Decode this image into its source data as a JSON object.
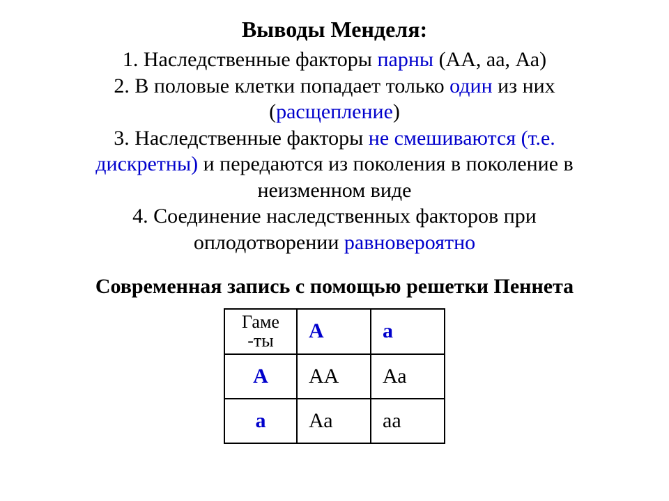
{
  "title": "Выводы Менделя:",
  "lines": {
    "l1a": "1. Наследственные факторы ",
    "l1b": "парны",
    "l1c": " (АА, аа, Аа)",
    "l2a": "2. В половые клетки попадает только ",
    "l2b": "один",
    "l2c": " из них",
    "l2d": "(",
    "l2e": "расщепление",
    "l2f": ")",
    "l3a": "3. Наследственные факторы ",
    "l3b": "не смешиваются (т.е.",
    "l3c": "дискретны)",
    "l3d": " и передаются из поколения в поколение в",
    "l3e": "неизменном виде",
    "l4a": "4. Соединение наследственных факторов при",
    "l4b": "оплодотворении ",
    "l4c": "равновероятно"
  },
  "subheading": "Современная запись с помощью решетки Пеннета",
  "punnett": {
    "corner1": "Гаме",
    "corner2": "-ты",
    "col_headers": [
      "А",
      "а"
    ],
    "row_headers": [
      "А",
      "а"
    ],
    "cells": [
      [
        "АА",
        "Аа"
      ],
      [
        "Аа",
        "аа"
      ]
    ]
  },
  "colors": {
    "text": "#000000",
    "highlight": "#0000cc",
    "background": "#ffffff",
    "border": "#000000"
  },
  "typography": {
    "family": "Times New Roman",
    "title_size_pt": 24,
    "body_size_pt": 22,
    "table_size_pt": 22
  }
}
